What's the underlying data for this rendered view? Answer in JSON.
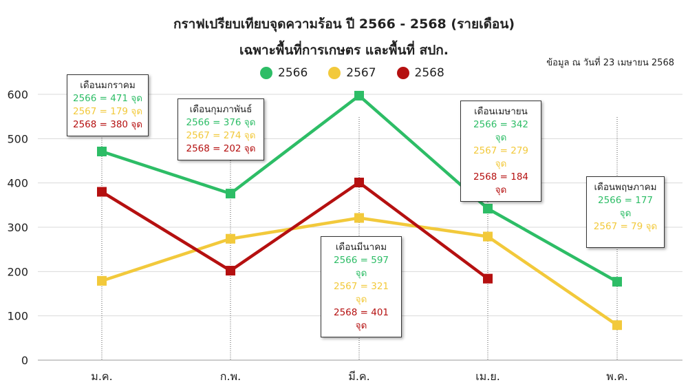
{
  "title_line1": "กราฟเปรียบเทียบจุดความร้อน ปี 2566 - 2568 (รายเดือน)",
  "title_line2": "เฉพาะพื้นที่การเกษตร และพื้นที่ สปก.",
  "as_of": "ข้อมูล ณ วันที่ 23 เมษายน 2568",
  "colors": {
    "s2566": "#2dbd66",
    "s2567": "#f2c93b",
    "s2568": "#b51010"
  },
  "chart_data": {
    "type": "line",
    "categories": [
      "ม.ค.",
      "ก.พ.",
      "มี.ค.",
      "เม.ย.",
      "พ.ค."
    ],
    "ylim": [
      0,
      600
    ],
    "yticks": [
      0,
      100,
      200,
      300,
      400,
      500,
      600
    ],
    "grid": true,
    "legend_position": "top-center",
    "series": [
      {
        "name": "2566",
        "color": "#2dbd66",
        "values": [
          471,
          376,
          597,
          342,
          177
        ]
      },
      {
        "name": "2567",
        "color": "#f2c93b",
        "values": [
          179,
          274,
          321,
          279,
          79
        ]
      },
      {
        "name": "2568",
        "color": "#b51010",
        "values": [
          380,
          202,
          401,
          184,
          null
        ]
      }
    ]
  },
  "callouts": [
    {
      "month": "เดือนมกราคม",
      "lines": [
        {
          "text": "2566 = 471 จุด",
          "color": "#2dbd66"
        },
        {
          "text": "2567 = 179 จุด",
          "color": "#f2c93b"
        },
        {
          "text": "2568 = 380 จุด",
          "color": "#b51010"
        }
      ]
    },
    {
      "month": "เดือนกุมภาพันธ์",
      "lines": [
        {
          "text": "2566 = 376 จุด",
          "color": "#2dbd66"
        },
        {
          "text": "2567 = 274 จุด",
          "color": "#f2c93b"
        },
        {
          "text": "2568 = 202 จุด",
          "color": "#b51010"
        }
      ]
    },
    {
      "month": "เดือนมีนาคม",
      "lines": [
        {
          "text": "2566 = 597 จุด",
          "color": "#2dbd66"
        },
        {
          "text": "2567 = 321 จุด",
          "color": "#f2c93b"
        },
        {
          "text": "2568 = 401 จุด",
          "color": "#b51010"
        }
      ]
    },
    {
      "month": "เดือนเมษายน",
      "lines": [
        {
          "text": "2566 = 342 จุด",
          "color": "#2dbd66"
        },
        {
          "text": "2567 = 279 จุด",
          "color": "#f2c93b"
        },
        {
          "text": "2568 = 184 จุด",
          "color": "#b51010"
        }
      ]
    },
    {
      "month": "เดือนพฤษภาคม",
      "lines": [
        {
          "text": "2566 = 177 จุด",
          "color": "#2dbd66"
        },
        {
          "text": "2567 = 79 จุด",
          "color": "#f2c93b"
        }
      ]
    }
  ]
}
